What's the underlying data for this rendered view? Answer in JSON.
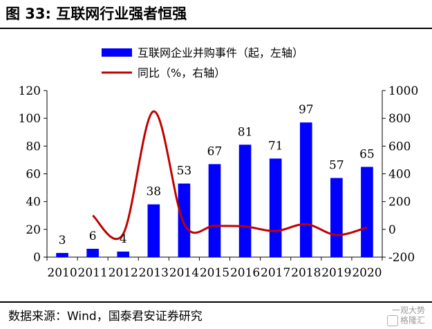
{
  "figure": {
    "title": "图 33:  互联网行业强者恒强",
    "source": "数据来源：Wind，国泰君安证券研究",
    "watermark_line1": "一观大势",
    "watermark_line2": "格隆汇"
  },
  "chart_data": {
    "type": "bar+line",
    "categories": [
      "2010",
      "2011",
      "2012",
      "2013",
      "2014",
      "2015",
      "2016",
      "2017",
      "2018",
      "2019",
      "2020"
    ],
    "series": [
      {
        "name": "互联网企业并购事件（起，左轴）",
        "type": "bar",
        "axis": "left",
        "color": "#0000ff",
        "values": [
          3,
          6,
          4,
          38,
          53,
          67,
          81,
          71,
          97,
          57,
          65
        ],
        "data_labels": [
          "3",
          "6",
          "4",
          "38",
          "53",
          "67",
          "81",
          "71",
          "97",
          "57",
          "65"
        ]
      },
      {
        "name": "同比（%，右轴）",
        "type": "line",
        "axis": "right",
        "color": "#c00000",
        "values": [
          null,
          100,
          -33,
          850,
          39,
          26,
          21,
          -12,
          37,
          -41,
          14
        ]
      }
    ],
    "y_left": {
      "min": 0,
      "max": 120,
      "ticks": [
        "0",
        "20",
        "40",
        "60",
        "80",
        "100",
        "120"
      ]
    },
    "y_right": {
      "min": -200,
      "max": 1000,
      "ticks": [
        "-200",
        "0",
        "200",
        "400",
        "600",
        "800",
        "1000"
      ]
    },
    "grid": false,
    "legend_position": "top-center"
  }
}
